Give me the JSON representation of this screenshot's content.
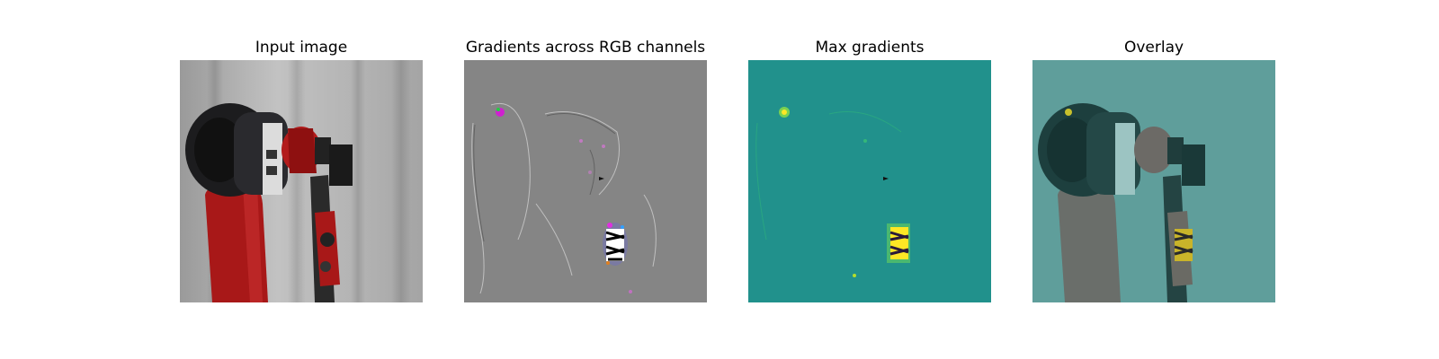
{
  "panels": [
    {
      "title": "Input image"
    },
    {
      "title": "Gradients across RGB channels"
    },
    {
      "title": "Max gradients"
    },
    {
      "title": "Overlay"
    }
  ],
  "colors": {
    "background": "#ffffff",
    "curtain": "#b8b8b8",
    "robot_red": "#a81818",
    "robot_black": "#1c1c1e",
    "grad_gray": "#858585",
    "viridis_bg": "#21918c",
    "highlight_yellow": "#fde725",
    "overlay_teal": "#4e9693"
  }
}
